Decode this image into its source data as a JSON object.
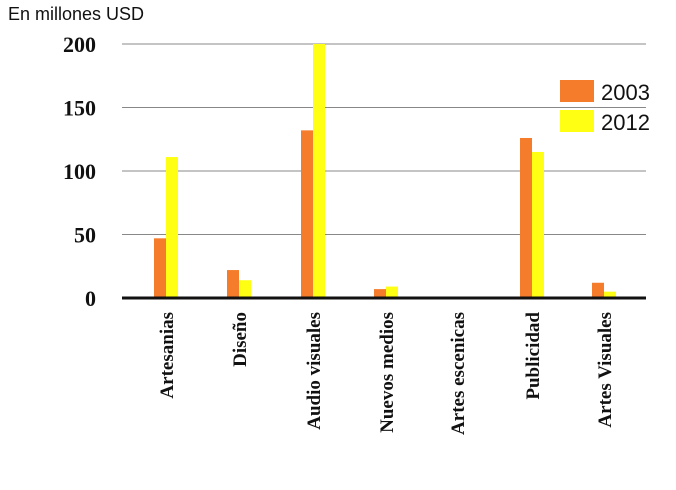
{
  "chart_data": {
    "type": "bar",
    "unit_label": "En millones USD",
    "categories": [
      "Artesanias",
      "Diseño",
      "Audio visuales",
      "Nuevos medios",
      "Artes escenicas",
      "Publicidad",
      "Artes Visuales"
    ],
    "series": [
      {
        "name": "2003",
        "color": "#f47c2a",
        "values": [
          47,
          22,
          132,
          7,
          0,
          126,
          12
        ]
      },
      {
        "name": "2012",
        "color": "#ffff14",
        "values": [
          111,
          14,
          200,
          9,
          0,
          115,
          5
        ]
      }
    ],
    "ylim": [
      0,
      200
    ],
    "yticks": [
      "0",
      "50",
      "100",
      "150",
      "200"
    ],
    "grid": true,
    "legend_position": "top-right"
  }
}
